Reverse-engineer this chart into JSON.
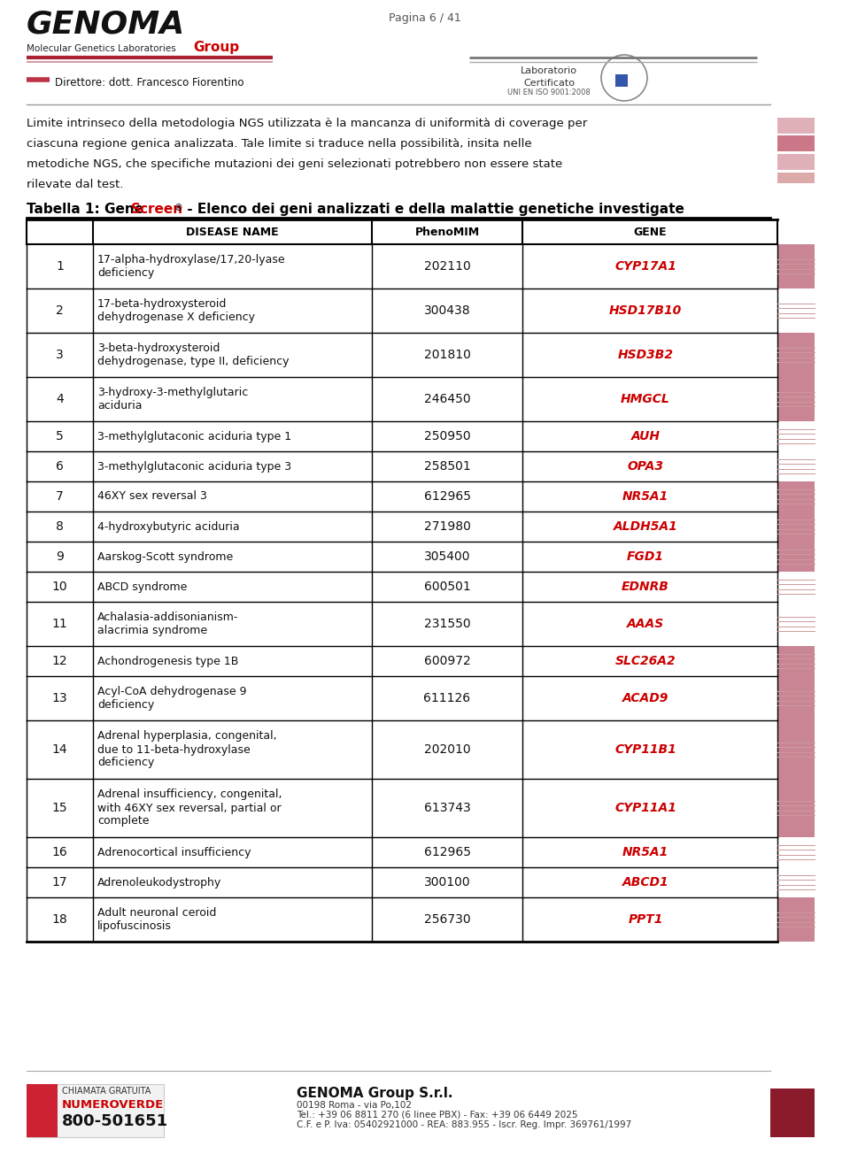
{
  "page_text": "Pagina 6 / 41",
  "body_text_lines": [
    "Limite intrinseco della metodologia NGS utilizzata è la mancanza di uniformità di coverage per",
    "ciascuna regione genica analizzata. Tale limite si traduce nella possibilità, insita nelle",
    "metodiche NGS, che specifiche mutazioni dei geni selezionati potrebbero non essere state",
    "rilevate dal test."
  ],
  "col_headers": [
    "",
    "DISEASE NAME",
    "PhenoMIM",
    "GENE"
  ],
  "rows": [
    {
      "num": "1",
      "disease": "17-alpha-hydroxylase/17,20-lyase\ndeficiency",
      "pheno": "202110",
      "gene": "CYP17A1",
      "red_bar": true
    },
    {
      "num": "2",
      "disease": "17-beta-hydroxysteroid\ndehydrogenase X deficiency",
      "pheno": "300438",
      "gene": "HSD17B10",
      "red_bar": false
    },
    {
      "num": "3",
      "disease": "3-beta-hydroxysteroid\ndehydrogenase, type II, deficiency",
      "pheno": "201810",
      "gene": "HSD3B2",
      "red_bar": true
    },
    {
      "num": "4",
      "disease": "3-hydroxy-3-methylglutaric\naciduria",
      "pheno": "246450",
      "gene": "HMGCL",
      "red_bar": true
    },
    {
      "num": "5",
      "disease": "3-methylglutaconic aciduria type 1",
      "pheno": "250950",
      "gene": "AUH",
      "red_bar": false
    },
    {
      "num": "6",
      "disease": "3-methylglutaconic aciduria type 3",
      "pheno": "258501",
      "gene": "OPA3",
      "red_bar": false
    },
    {
      "num": "7",
      "disease": "46XY sex reversal 3",
      "pheno": "612965",
      "gene": "NR5A1",
      "red_bar": true
    },
    {
      "num": "8",
      "disease": "4-hydroxybutyric aciduria",
      "pheno": "271980",
      "gene": "ALDH5A1",
      "red_bar": true
    },
    {
      "num": "9",
      "disease": "Aarskog-Scott syndrome",
      "pheno": "305400",
      "gene": "FGD1",
      "red_bar": true
    },
    {
      "num": "10",
      "disease": "ABCD syndrome",
      "pheno": "600501",
      "gene": "EDNRB",
      "red_bar": false
    },
    {
      "num": "11",
      "disease": "Achalasia-addisonianism-\nalacrimia syndrome",
      "pheno": "231550",
      "gene": "AAAS",
      "red_bar": false
    },
    {
      "num": "12",
      "disease": "Achondrogenesis type 1B",
      "pheno": "600972",
      "gene": "SLC26A2",
      "red_bar": true
    },
    {
      "num": "13",
      "disease": "Acyl-CoA dehydrogenase 9\ndeficiency",
      "pheno": "611126",
      "gene": "ACAD9",
      "red_bar": true
    },
    {
      "num": "14",
      "disease": "Adrenal hyperplasia, congenital,\ndue to 11-beta-hydroxylase\ndeficiency",
      "pheno": "202010",
      "gene": "CYP11B1",
      "red_bar": true
    },
    {
      "num": "15",
      "disease": "Adrenal insufficiency, congenital,\nwith 46XY sex reversal, partial or\ncomplete",
      "pheno": "613743",
      "gene": "CYP11A1",
      "red_bar": true
    },
    {
      "num": "16",
      "disease": "Adrenocortical insufficiency",
      "pheno": "612965",
      "gene": "NR5A1",
      "red_bar": false
    },
    {
      "num": "17",
      "disease": "Adrenoleukodystrophy",
      "pheno": "300100",
      "gene": "ABCD1",
      "red_bar": false
    },
    {
      "num": "18",
      "disease": "Adult neuronal ceroid\nlipofuscinosis",
      "pheno": "256730",
      "gene": "PPT1",
      "red_bar": true
    }
  ],
  "footer_phone_label": "CHIAMATA GRATUITA",
  "footer_phone_verde": "NUMEROVERDE",
  "footer_phone_number": "800-501651",
  "footer_company": "GENOMA Group S.r.l.",
  "footer_addr1": "00198 Roma - via Po,102",
  "footer_addr2": "Tel.: +39 06 8811 270 (6 linee PBX) - Fax: +39 06 6449 2025",
  "footer_addr3": "C.F. e P. Iva: 05402921000 - REA: 883.955 - Iscr. Reg. Impr. 369761/1997",
  "red": "#cc0000",
  "pink_bar": "#c47a85",
  "dark_bar": "#8b3a4a",
  "footer_dark_red": "#8b1a2a",
  "gene_color": "#cc0000",
  "bg_color": "#ffffff",
  "text_dark": "#111111",
  "gray_line": "#888888"
}
